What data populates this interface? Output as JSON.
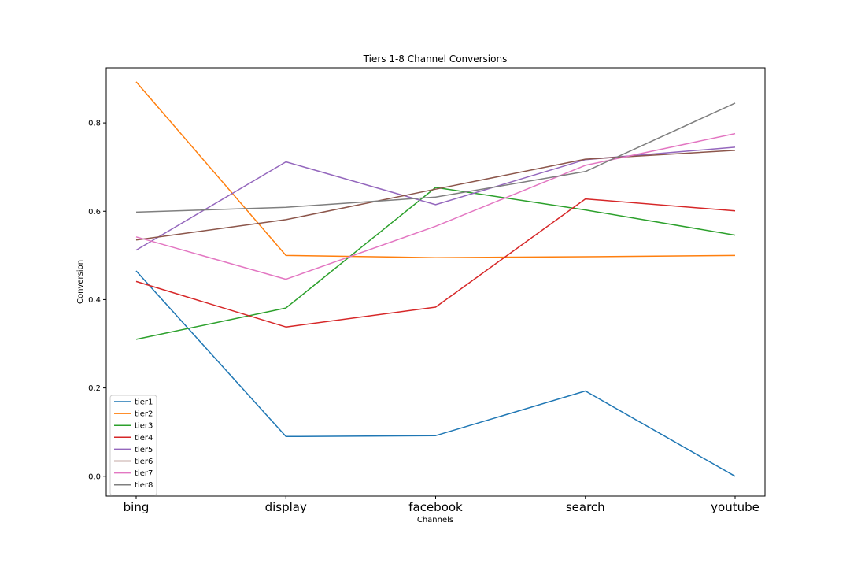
{
  "chart_data": {
    "type": "line",
    "title": "Tiers 1-8 Channel Conversions",
    "xlabel": "Channels",
    "ylabel": "Conversion",
    "categories": [
      "bing",
      "display",
      "facebook",
      "search",
      "youtube"
    ],
    "ylim": [
      -0.045,
      0.925
    ],
    "yticks": [
      0.0,
      0.2,
      0.4,
      0.6,
      0.8
    ],
    "ytick_labels": [
      "0.0",
      "0.2",
      "0.4",
      "0.6",
      "0.8"
    ],
    "grid": false,
    "legend_position": "lower-left",
    "series": [
      {
        "name": "tier1",
        "color": "#1f77b4",
        "values": [
          0.465,
          0.09,
          0.092,
          0.193,
          0.0
        ]
      },
      {
        "name": "tier2",
        "color": "#ff7f0e",
        "values": [
          0.893,
          0.5,
          0.495,
          0.497,
          0.5
        ]
      },
      {
        "name": "tier3",
        "color": "#2ca02c",
        "values": [
          0.31,
          0.381,
          0.654,
          0.603,
          0.546
        ]
      },
      {
        "name": "tier4",
        "color": "#d62728",
        "values": [
          0.441,
          0.338,
          0.383,
          0.628,
          0.601
        ]
      },
      {
        "name": "tier5",
        "color": "#9467bd",
        "values": [
          0.512,
          0.712,
          0.615,
          0.717,
          0.745
        ]
      },
      {
        "name": "tier6",
        "color": "#8c564b",
        "values": [
          0.535,
          0.581,
          0.65,
          0.718,
          0.738
        ]
      },
      {
        "name": "tier7",
        "color": "#e377c2",
        "values": [
          0.542,
          0.446,
          0.566,
          0.704,
          0.776
        ]
      },
      {
        "name": "tier8",
        "color": "#7f7f7f",
        "values": [
          0.598,
          0.609,
          0.632,
          0.69,
          0.845
        ]
      }
    ]
  }
}
